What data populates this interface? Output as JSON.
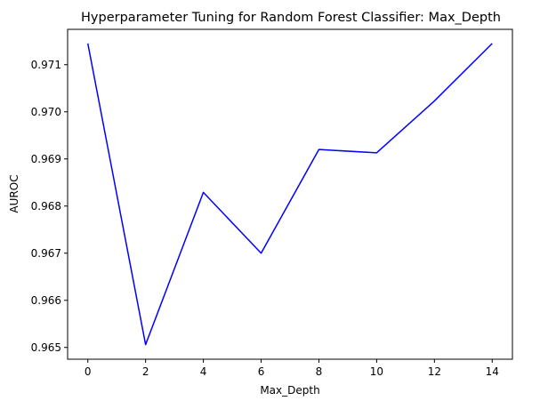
{
  "chart_data": {
    "type": "line",
    "title": "Hyperparameter Tuning for Random Forest Classifier: Max_Depth",
    "xlabel": "Max_Depth",
    "ylabel": "AUROC",
    "x": [
      0,
      2,
      4,
      6,
      8,
      10,
      12,
      14
    ],
    "series": [
      {
        "values": [
          0.97145,
          0.96506,
          0.96829,
          0.967,
          0.9692,
          0.96913,
          0.97023,
          0.97145
        ],
        "color": "#0000ff"
      }
    ],
    "xlim": [
      -0.7,
      14.7
    ],
    "ylim": [
      0.96475,
      0.97175
    ],
    "xticks": [
      "0",
      "2",
      "4",
      "6",
      "8",
      "10",
      "12",
      "14"
    ],
    "yticks": [
      "0.965",
      "0.966",
      "0.967",
      "0.968",
      "0.969",
      "0.970",
      "0.971"
    ],
    "grid": false,
    "legend": "none"
  }
}
